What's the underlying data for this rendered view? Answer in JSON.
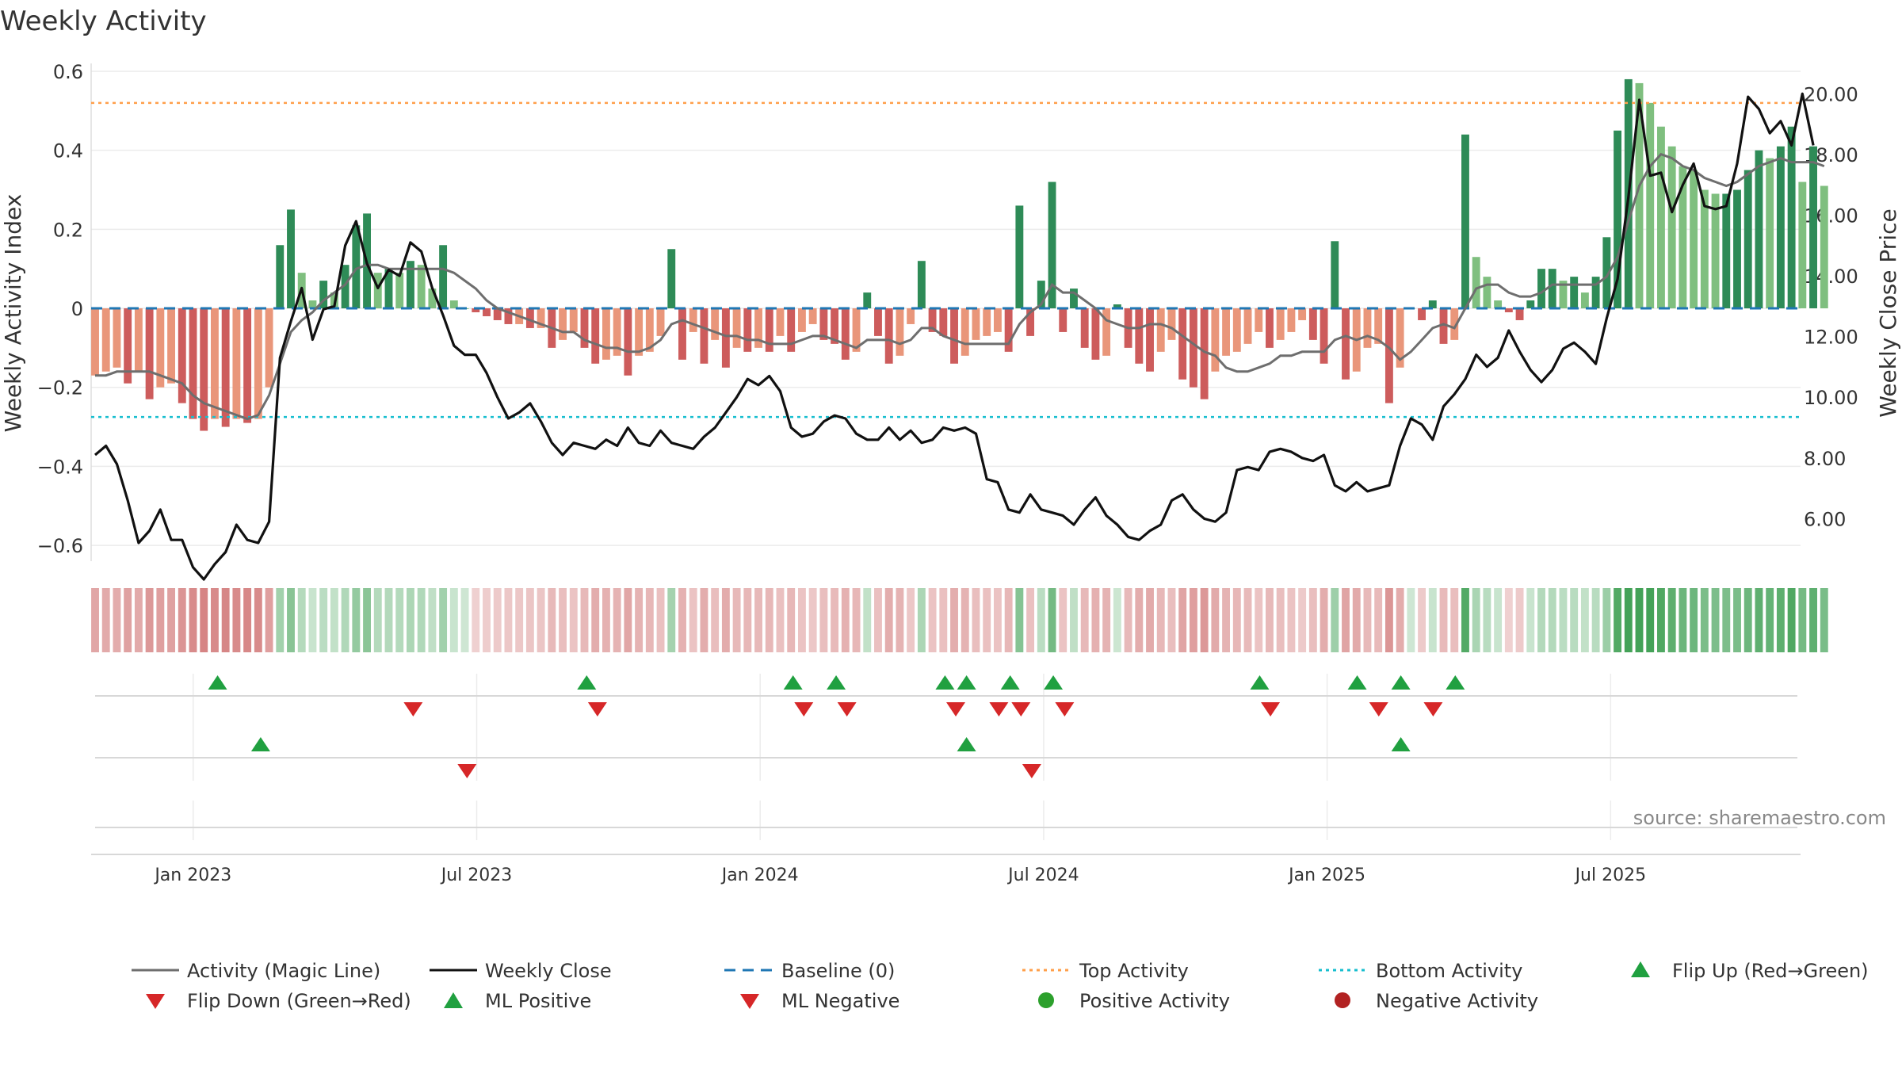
{
  "chart_data": {
    "type": "bar",
    "title": "Weekly Activity",
    "ylabel": "Weekly Activity Index",
    "y2label": "Weekly Close Price",
    "source": "source: sharemaestro.com",
    "ylim": [
      -0.64,
      0.62
    ],
    "y2lim": [
      4.6,
      21.0
    ],
    "yticks": [
      "0.6",
      "0.4",
      "0.2",
      "0",
      "−0.2",
      "−0.4",
      "−0.6"
    ],
    "yticks_values": [
      0.6,
      0.4,
      0.2,
      0,
      -0.2,
      -0.4,
      -0.6
    ],
    "y2ticks": [
      "20.00",
      "18.00",
      "16.00",
      "14.00",
      "12.00",
      "10.00",
      "8.00",
      "6.00"
    ],
    "y2ticks_values": [
      20,
      18,
      16,
      14,
      12,
      10,
      8,
      6
    ],
    "xlim": [
      2022.82,
      2025.835
    ],
    "xticks": [
      "Jan 2023",
      "Jul 2023",
      "Jan 2024",
      "Jul 2024",
      "Jan 2025",
      "Jul 2025"
    ],
    "xticks_values": [
      2023.0,
      2023.5,
      2024.0,
      2024.5,
      2025.0,
      2025.5
    ],
    "top_activity": 0.52,
    "bottom_activity": -0.275,
    "x_start": 2022.827,
    "week": 0.01918,
    "activity": [
      -0.17,
      -0.16,
      -0.15,
      -0.19,
      -0.16,
      -0.23,
      -0.2,
      -0.19,
      -0.24,
      -0.28,
      -0.31,
      -0.28,
      -0.3,
      -0.28,
      -0.29,
      -0.28,
      -0.2,
      0.16,
      0.25,
      0.09,
      0.02,
      0.07,
      0.04,
      0.11,
      0.21,
      0.24,
      0.09,
      0.1,
      0.09,
      0.12,
      0.11,
      0.05,
      0.16,
      0.02,
      0.0,
      -0.01,
      -0.02,
      -0.03,
      -0.04,
      -0.04,
      -0.05,
      -0.05,
      -0.1,
      -0.08,
      -0.06,
      -0.1,
      -0.14,
      -0.13,
      -0.12,
      -0.17,
      -0.12,
      -0.11,
      -0.07,
      0.15,
      -0.13,
      -0.06,
      -0.14,
      -0.08,
      -0.15,
      -0.1,
      -0.11,
      -0.1,
      -0.11,
      -0.07,
      -0.11,
      -0.06,
      -0.04,
      -0.08,
      -0.09,
      -0.13,
      -0.11,
      0.04,
      -0.07,
      -0.14,
      -0.12,
      -0.04,
      0.12,
      -0.06,
      -0.07,
      -0.14,
      -0.12,
      -0.08,
      -0.07,
      -0.06,
      -0.11,
      0.26,
      -0.07,
      0.07,
      0.32,
      -0.06,
      0.05,
      -0.1,
      -0.13,
      -0.12,
      0.01,
      -0.1,
      -0.14,
      -0.16,
      -0.11,
      -0.08,
      -0.18,
      -0.2,
      -0.23,
      -0.16,
      -0.12,
      -0.11,
      -0.09,
      -0.06,
      -0.1,
      -0.08,
      -0.06,
      -0.03,
      -0.08,
      -0.14,
      0.17,
      -0.18,
      -0.16,
      -0.1,
      -0.09,
      -0.24,
      -0.15,
      0.0,
      -0.03,
      0.02,
      -0.09,
      -0.08,
      0.44,
      0.13,
      0.08,
      0.02,
      -0.01,
      -0.03,
      0.02,
      0.1,
      0.1,
      0.07,
      0.08,
      0.04,
      0.08,
      0.18,
      0.45,
      0.58,
      0.57,
      0.52,
      0.46,
      0.41,
      0.36,
      0.35,
      0.3,
      0.29,
      0.29,
      0.3,
      0.35,
      0.4,
      0.38,
      0.41,
      0.46,
      0.32,
      0.41,
      0.31
    ],
    "magic_line": [
      -0.17,
      -0.17,
      -0.16,
      -0.16,
      -0.16,
      -0.16,
      -0.17,
      -0.18,
      -0.19,
      -0.22,
      -0.24,
      -0.25,
      -0.26,
      -0.27,
      -0.28,
      -0.27,
      -0.22,
      -0.14,
      -0.06,
      -0.03,
      -0.01,
      0.02,
      0.04,
      0.06,
      0.1,
      0.11,
      0.11,
      0.1,
      0.1,
      0.1,
      0.1,
      0.1,
      0.1,
      0.09,
      0.07,
      0.05,
      0.02,
      0.0,
      -0.01,
      -0.02,
      -0.03,
      -0.04,
      -0.05,
      -0.06,
      -0.06,
      -0.08,
      -0.09,
      -0.1,
      -0.1,
      -0.11,
      -0.11,
      -0.1,
      -0.08,
      -0.04,
      -0.03,
      -0.04,
      -0.05,
      -0.06,
      -0.07,
      -0.07,
      -0.08,
      -0.08,
      -0.09,
      -0.09,
      -0.09,
      -0.08,
      -0.07,
      -0.07,
      -0.08,
      -0.09,
      -0.1,
      -0.08,
      -0.08,
      -0.08,
      -0.09,
      -0.08,
      -0.05,
      -0.05,
      -0.07,
      -0.08,
      -0.09,
      -0.09,
      -0.09,
      -0.09,
      -0.09,
      -0.04,
      -0.01,
      0.01,
      0.06,
      0.04,
      0.04,
      0.02,
      0.0,
      -0.03,
      -0.04,
      -0.05,
      -0.05,
      -0.04,
      -0.04,
      -0.05,
      -0.07,
      -0.09,
      -0.11,
      -0.12,
      -0.15,
      -0.16,
      -0.16,
      -0.15,
      -0.14,
      -0.12,
      -0.12,
      -0.11,
      -0.11,
      -0.11,
      -0.08,
      -0.07,
      -0.08,
      -0.07,
      -0.08,
      -0.1,
      -0.13,
      -0.11,
      -0.08,
      -0.05,
      -0.04,
      -0.05,
      0.0,
      0.05,
      0.06,
      0.06,
      0.04,
      0.03,
      0.03,
      0.04,
      0.06,
      0.06,
      0.06,
      0.06,
      0.06,
      0.08,
      0.13,
      0.22,
      0.31,
      0.36,
      0.39,
      0.38,
      0.36,
      0.35,
      0.33,
      0.32,
      0.31,
      0.32,
      0.34,
      0.36,
      0.37,
      0.38,
      0.37,
      0.37,
      0.37,
      0.36
    ],
    "weekly_close": [
      8.1,
      8.4,
      7.8,
      6.6,
      5.2,
      5.6,
      6.3,
      5.3,
      5.3,
      4.4,
      4.0,
      4.5,
      4.9,
      5.8,
      5.3,
      5.2,
      5.9,
      11.3,
      12.5,
      13.6,
      11.9,
      12.9,
      13.0,
      15.0,
      15.8,
      14.4,
      13.6,
      14.2,
      14.0,
      15.1,
      14.8,
      13.6,
      12.7,
      11.7,
      11.4,
      11.4,
      10.8,
      10.0,
      9.3,
      9.5,
      9.8,
      9.2,
      8.5,
      8.1,
      8.5,
      8.4,
      8.3,
      8.6,
      8.4,
      9.0,
      8.5,
      8.4,
      8.9,
      8.5,
      8.4,
      8.3,
      8.7,
      9.0,
      9.5,
      10.0,
      10.6,
      10.4,
      10.7,
      10.2,
      9.0,
      8.7,
      8.8,
      9.2,
      9.4,
      9.3,
      8.8,
      8.6,
      8.6,
      9.0,
      8.6,
      8.9,
      8.5,
      8.6,
      9.0,
      8.9,
      9.0,
      8.8,
      7.3,
      7.2,
      6.3,
      6.2,
      6.8,
      6.3,
      6.2,
      6.1,
      5.8,
      6.3,
      6.7,
      6.1,
      5.8,
      5.4,
      5.3,
      5.6,
      5.8,
      6.6,
      6.8,
      6.3,
      6.0,
      5.9,
      6.2,
      7.6,
      7.7,
      7.6,
      8.2,
      8.3,
      8.2,
      8.0,
      7.9,
      8.1,
      7.1,
      6.9,
      7.2,
      6.9,
      7.0,
      7.1,
      8.4,
      9.3,
      9.1,
      8.6,
      9.7,
      10.1,
      10.6,
      11.4,
      11.0,
      11.3,
      12.2,
      11.5,
      10.9,
      10.5,
      10.9,
      11.6,
      11.8,
      11.5,
      11.1,
      12.6,
      13.9,
      16.6,
      19.8,
      17.3,
      17.4,
      16.1,
      17.0,
      17.7,
      16.3,
      16.2,
      16.3,
      17.7,
      19.9,
      19.5,
      18.7,
      19.1,
      18.3,
      20.0,
      18.3
    ],
    "series": [
      {
        "name": "Activity (Magic Line)"
      },
      {
        "name": "Weekly Close"
      },
      {
        "name": "Baseline (0)"
      },
      {
        "name": "Top Activity"
      },
      {
        "name": "Bottom Activity"
      },
      {
        "name": "Flip Up (Red→Green)"
      },
      {
        "name": "Flip Down (Green→Red)"
      },
      {
        "name": "ML Positive"
      },
      {
        "name": "ML Negative"
      },
      {
        "name": "Positive Activity"
      },
      {
        "name": "Negative Activity"
      }
    ],
    "flip_up_dates": [
      2023.043,
      2023.694,
      2024.058,
      2024.134,
      2024.326,
      2024.364,
      2024.441,
      2024.517,
      2024.881,
      2025.053,
      2025.13,
      2025.226
    ],
    "flip_down_dates": [
      2023.388,
      2023.713,
      2024.077,
      2024.153,
      2024.345,
      2024.421,
      2024.46,
      2024.537,
      2024.9,
      2025.091,
      2025.187
    ],
    "ml_positive_dates": [
      2023.119,
      2024.364,
      2025.13
    ],
    "ml_negative_dates": [
      2023.483,
      2024.479
    ],
    "colors": {
      "pos_strong": "#2e8b57",
      "pos_light": "#7fbf7f",
      "neg_strong": "#cd5c5c",
      "neg_light": "#e9967a",
      "magic_line": "#6e6e6e",
      "close": "#111111",
      "baseline": "#1f77b4",
      "top": "#ff7f0e",
      "bottom": "#17becf",
      "marker_up": "#20a040",
      "marker_down": "#d62728",
      "positive_dot": "#2ca02c",
      "negative_dot": "#b22222"
    }
  }
}
